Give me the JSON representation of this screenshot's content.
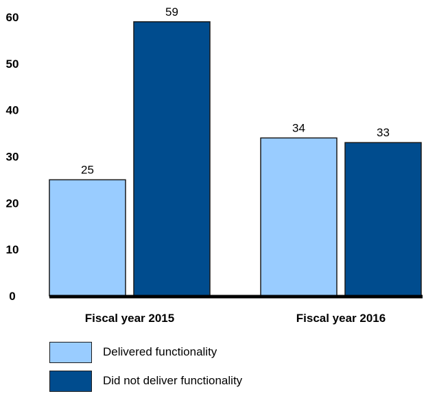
{
  "chart_data": {
    "type": "bar",
    "categories": [
      "Fiscal year 2015",
      "Fiscal year 2016"
    ],
    "series": [
      {
        "name": "Delivered functionality",
        "values": [
          25,
          34
        ],
        "color": "#99ccff"
      },
      {
        "name": "Did not deliver functionality",
        "values": [
          59,
          33
        ],
        "color": "#004c8e"
      }
    ],
    "ylim": [
      0,
      60
    ],
    "yticks": [
      0,
      10,
      20,
      30,
      40,
      50,
      60
    ],
    "grid": false,
    "legend_position": "bottom-left",
    "title": "",
    "xlabel": "",
    "ylabel": ""
  }
}
